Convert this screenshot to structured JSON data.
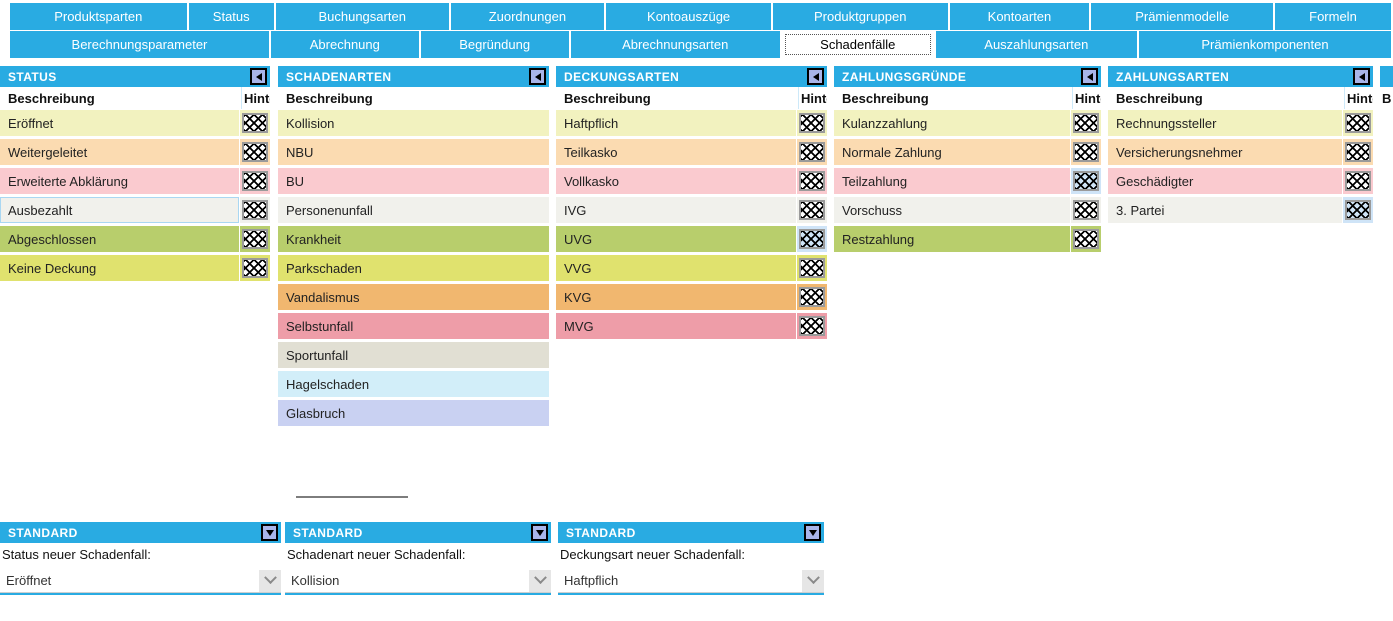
{
  "tabs": {
    "row1": [
      "Produktsparten",
      "Status",
      "Buchungsarten",
      "Zuordnungen",
      "Kontoauszüge",
      "Produktgruppen",
      "Kontoarten",
      "Prämienmodelle",
      "Formeln"
    ],
    "row2": [
      "Berechnungsparameter",
      "Abrechnung",
      "Begründung",
      "Abrechnungsarten",
      "Schadenfälle",
      "Auszahlungsarten",
      "Prämienkomponenten"
    ],
    "active_tab": "Schadenfälle"
  },
  "columns": {
    "description": "Beschreibung",
    "background": "Hintergrund"
  },
  "panels": {
    "status": {
      "title": "STATUS",
      "rows": [
        {
          "label": "Eröffnet",
          "color": "#F2F2BF"
        },
        {
          "label": "Weitergeleitet",
          "color": "#FBDBB1"
        },
        {
          "label": "Erweiterte Abklärung",
          "color": "#FACACF"
        },
        {
          "label": "Ausbezahlt",
          "color": "#F1F1EC",
          "outlined": true
        },
        {
          "label": "Abgeschlossen",
          "color": "#B8CE6C"
        },
        {
          "label": "Keine Deckung",
          "color": "#E0E26E"
        }
      ]
    },
    "schadenarten": {
      "title": "SCHADENARTEN",
      "rows": [
        {
          "label": "Kollision",
          "color": "#F2F2BF"
        },
        {
          "label": "NBU",
          "color": "#FBDBB1"
        },
        {
          "label": "BU",
          "color": "#FACACF"
        },
        {
          "label": "Personenunfall",
          "color": "#F1F1EC"
        },
        {
          "label": "Krankheit",
          "color": "#B8CE6C"
        },
        {
          "label": "Parkschaden",
          "color": "#E0E26E"
        },
        {
          "label": "Vandalismus",
          "color": "#F1B76F"
        },
        {
          "label": "Selbstunfall",
          "color": "#EE9DA8"
        },
        {
          "label": "Sportunfall",
          "color": "#E1DFD3"
        },
        {
          "label": "Hagelschaden",
          "color": "#D2EEF9"
        },
        {
          "label": "Glasbruch",
          "color": "#C9D1F2"
        }
      ]
    },
    "deckungsarten": {
      "title": "DECKUNGSARTEN",
      "rows": [
        {
          "label": "Haftpflich",
          "color": "#F2F2BF"
        },
        {
          "label": "Teilkasko",
          "color": "#FBDBB1"
        },
        {
          "label": "Vollkasko",
          "color": "#FACACF"
        },
        {
          "label": "IVG",
          "color": "#F1F1EC"
        },
        {
          "label": "UVG",
          "color": "#B8CE6C",
          "swatch_selected": true
        },
        {
          "label": "VVG",
          "color": "#E0E26E"
        },
        {
          "label": "KVG",
          "color": "#F1B76F"
        },
        {
          "label": "MVG",
          "color": "#EE9DA8"
        }
      ]
    },
    "zahlungsgruende": {
      "title": "ZAHLUNGSGRÜNDE",
      "rows": [
        {
          "label": "Kulanzzahlung",
          "color": "#F2F2BF"
        },
        {
          "label": "Normale Zahlung",
          "color": "#FBDBB1"
        },
        {
          "label": "Teilzahlung",
          "color": "#FACACF",
          "swatch_selected": true
        },
        {
          "label": "Vorschuss",
          "color": "#F1F1EC"
        },
        {
          "label": "Restzahlung",
          "color": "#B8CE6C"
        }
      ]
    },
    "zahlungsarten": {
      "title": "ZAHLUNGSARTEN",
      "rows": [
        {
          "label": "Rechnungssteller",
          "color": "#F2F2BF"
        },
        {
          "label": "Versicherungsnehmer",
          "color": "#FBDBB1"
        },
        {
          "label": "Geschädigter",
          "color": "#FACACF"
        },
        {
          "label": "3. Partei",
          "color": "#F1F1EC",
          "swatch_selected": true
        }
      ]
    },
    "cutoff": {
      "title": "",
      "visible_col_header": "B"
    }
  },
  "standard": [
    {
      "title": "STANDARD",
      "label": "Status neuer Schadenfall:",
      "value": "Eröffnet"
    },
    {
      "title": "STANDARD",
      "label": "Schadenart neuer Schadenfall:",
      "value": "Kollision"
    },
    {
      "title": "STANDARD",
      "label": "Deckungsart neuer Schadenfall:",
      "value": "Haftpflich"
    }
  ],
  "colors": {
    "accent_blue": "#29ABE2",
    "selection_blue": "#CFE4F7",
    "swatch_border": "#9A9A9A",
    "header_button": "#A9B5E9",
    "row_outline": "#A9D7F2"
  }
}
